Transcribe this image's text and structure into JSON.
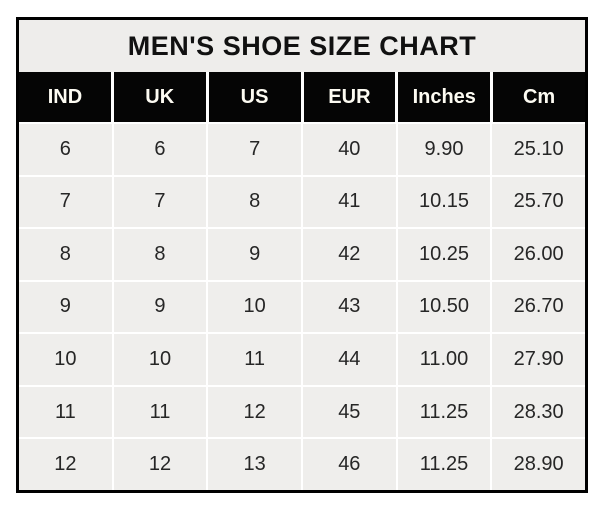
{
  "page": {
    "title": "MEN'S SHOE SIZE CHART"
  },
  "table": {
    "columns": [
      "IND",
      "UK",
      "US",
      "EUR",
      "Inches",
      "Cm"
    ],
    "rows": [
      [
        "6",
        "6",
        "7",
        "40",
        "9.90",
        "25.10"
      ],
      [
        "7",
        "7",
        "8",
        "41",
        "10.15",
        "25.70"
      ],
      [
        "8",
        "8",
        "9",
        "42",
        "10.25",
        "26.00"
      ],
      [
        "9",
        "9",
        "10",
        "43",
        "10.50",
        "26.70"
      ],
      [
        "10",
        "10",
        "11",
        "44",
        "11.00",
        "27.90"
      ],
      [
        "11",
        "11",
        "12",
        "45",
        "11.25",
        "28.30"
      ],
      [
        "12",
        "12",
        "13",
        "46",
        "11.25",
        "28.90"
      ]
    ]
  },
  "colors": {
    "title_bg": "#eeedeb",
    "header_bg": "#050505",
    "header_text": "#fdfbf2",
    "cell_bg": "#efeeec",
    "cell_text": "#262626",
    "grid": "#ffffff",
    "border": "#000000",
    "page_bg": "#ffffff",
    "title_text": "#111111"
  },
  "chart_data": {
    "type": "table",
    "title": "MEN'S SHOE SIZE CHART",
    "columns": [
      "IND",
      "UK",
      "US",
      "EUR",
      "Inches",
      "Cm"
    ],
    "rows": [
      [
        6,
        6,
        7,
        40,
        9.9,
        25.1
      ],
      [
        7,
        7,
        8,
        41,
        10.15,
        25.7
      ],
      [
        8,
        8,
        9,
        42,
        10.25,
        26.0
      ],
      [
        9,
        9,
        10,
        43,
        10.5,
        26.7
      ],
      [
        10,
        10,
        11,
        44,
        11.0,
        27.9
      ],
      [
        11,
        11,
        12,
        45,
        11.25,
        28.3
      ],
      [
        12,
        12,
        13,
        46,
        11.25,
        28.9
      ]
    ],
    "layout": {
      "header_style": "black-band",
      "grid": "white-gaps",
      "legend": "none"
    }
  }
}
